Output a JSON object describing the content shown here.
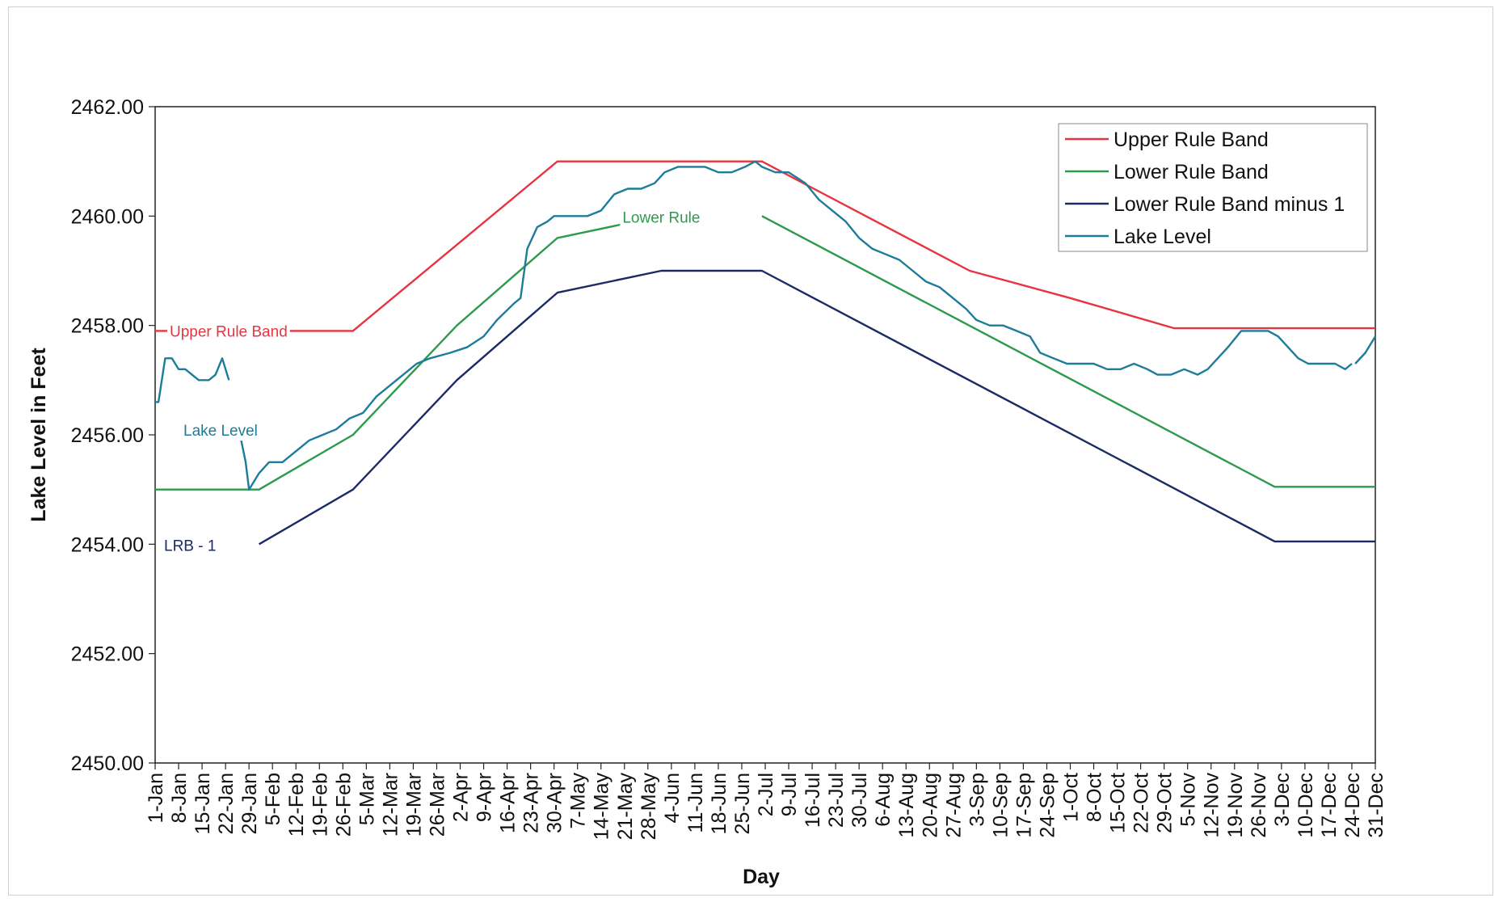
{
  "chart_data": {
    "type": "line",
    "title": "",
    "xlabel": "Day",
    "ylabel": "Lake Level in Feet",
    "ylim": [
      2450,
      2462
    ],
    "xlim": [
      "1-Jan",
      "31-Dec"
    ],
    "grid": false,
    "legend_position": "top-right",
    "y_ticks": [
      "2450.00",
      "2452.00",
      "2454.00",
      "2456.00",
      "2458.00",
      "2460.00",
      "2462.00"
    ],
    "x_ticks": [
      "1-Jan",
      "8-Jan",
      "15-Jan",
      "22-Jan",
      "29-Jan",
      "5-Feb",
      "12-Feb",
      "19-Feb",
      "26-Feb",
      "5-Mar",
      "12-Mar",
      "19-Mar",
      "26-Mar",
      "2-Apr",
      "9-Apr",
      "16-Apr",
      "23-Apr",
      "30-Apr",
      "7-May",
      "14-May",
      "21-May",
      "28-May",
      "4-Jun",
      "11-Jun",
      "18-Jun",
      "25-Jun",
      "2-Jul",
      "9-Jul",
      "16-Jul",
      "23-Jul",
      "30-Jul",
      "6-Aug",
      "13-Aug",
      "20-Aug",
      "27-Aug",
      "3-Sep",
      "10-Sep",
      "17-Sep",
      "24-Sep",
      "1-Oct",
      "8-Oct",
      "15-Oct",
      "22-Oct",
      "29-Oct",
      "5-Nov",
      "12-Nov",
      "19-Nov",
      "26-Nov",
      "3-Dec",
      "10-Dec",
      "17-Dec",
      "24-Dec",
      "31-Dec"
    ],
    "series": [
      {
        "name": "Upper Rule Band",
        "color": "#e8343f",
        "points": [
          [
            "1-Jan",
            2457.9
          ],
          [
            "1-Mar",
            2457.9
          ],
          [
            "1-May",
            2461.0
          ],
          [
            "1-Jul",
            2461.0
          ],
          [
            "1-Sep",
            2459.0
          ],
          [
            "1-Oct",
            2458.5
          ],
          [
            "1-Nov",
            2457.95
          ],
          [
            "31-Dec",
            2457.95
          ]
        ]
      },
      {
        "name": "Lower Rule Band",
        "color": "#2e9a4e",
        "points": [
          [
            "1-Jan",
            2455.0
          ],
          [
            "1-Feb",
            2455.0
          ],
          [
            "1-Mar",
            2456.0
          ],
          [
            "1-Apr",
            2458.0
          ],
          [
            "1-May",
            2459.6
          ],
          [
            "1-Jun",
            2460.0
          ]
        ],
        "points_2": [
          [
            "1-Jul",
            2460.0
          ],
          [
            "1-Dec",
            2455.05
          ],
          [
            "31-Dec",
            2455.05
          ]
        ]
      },
      {
        "name": "Lower Rule Band minus 1",
        "color": "#1b2a66",
        "points": [
          [
            "1-Feb",
            2454.0
          ],
          [
            "1-Mar",
            2455.0
          ],
          [
            "1-Apr",
            2457.0
          ],
          [
            "1-May",
            2458.6
          ],
          [
            "1-Jun",
            2459.0
          ],
          [
            "1-Jul",
            2459.0
          ],
          [
            "1-Dec",
            2454.05
          ],
          [
            "31-Dec",
            2454.05
          ]
        ]
      },
      {
        "name": "Lake Level",
        "color": "#1c7c99",
        "points": [
          [
            "1-Jan",
            2456.6
          ],
          [
            "2-Jan",
            2456.6
          ],
          [
            "4-Jan",
            2457.4
          ],
          [
            "6-Jan",
            2457.4
          ],
          [
            "8-Jan",
            2457.2
          ],
          [
            "10-Jan",
            2457.2
          ],
          [
            "12-Jan",
            2457.1
          ],
          [
            "14-Jan",
            2457.0
          ],
          [
            "17-Jan",
            2457.0
          ],
          [
            "19-Jan",
            2457.1
          ],
          [
            "21-Jan",
            2457.4
          ],
          [
            "23-Jan",
            2457.0
          ]
        ],
        "points_2": [
          [
            "26-Jan",
            2456.1
          ],
          [
            "28-Jan",
            2455.5
          ],
          [
            "29-Jan",
            2455.0
          ],
          [
            "1-Feb",
            2455.3
          ],
          [
            "4-Feb",
            2455.5
          ],
          [
            "8-Feb",
            2455.5
          ],
          [
            "12-Feb",
            2455.7
          ],
          [
            "16-Feb",
            2455.9
          ],
          [
            "20-Feb",
            2456.0
          ],
          [
            "24-Feb",
            2456.1
          ],
          [
            "28-Feb",
            2456.3
          ],
          [
            "4-Mar",
            2456.4
          ],
          [
            "8-Mar",
            2456.7
          ],
          [
            "12-Mar",
            2456.9
          ],
          [
            "16-Mar",
            2457.1
          ],
          [
            "20-Mar",
            2457.3
          ],
          [
            "24-Mar",
            2457.4
          ],
          [
            "30-Mar",
            2457.5
          ],
          [
            "4-Apr",
            2457.6
          ],
          [
            "9-Apr",
            2457.8
          ],
          [
            "13-Apr",
            2458.1
          ],
          [
            "18-Apr",
            2458.4
          ],
          [
            "20-Apr",
            2458.5
          ],
          [
            "22-Apr",
            2459.4
          ],
          [
            "25-Apr",
            2459.8
          ],
          [
            "28-Apr",
            2459.9
          ],
          [
            "30-Apr",
            2460.0
          ],
          [
            "6-May",
            2460.0
          ],
          [
            "10-May",
            2460.0
          ],
          [
            "14-May",
            2460.1
          ],
          [
            "18-May",
            2460.4
          ],
          [
            "22-May",
            2460.5
          ],
          [
            "26-May",
            2460.5
          ],
          [
            "30-May",
            2460.6
          ],
          [
            "2-Jun",
            2460.8
          ],
          [
            "6-Jun",
            2460.9
          ],
          [
            "10-Jun",
            2460.9
          ],
          [
            "14-Jun",
            2460.9
          ],
          [
            "18-Jun",
            2460.8
          ],
          [
            "22-Jun",
            2460.8
          ],
          [
            "26-Jun",
            2460.9
          ],
          [
            "29-Jun",
            2461.0
          ],
          [
            "1-Jul",
            2460.9
          ],
          [
            "5-Jul",
            2460.8
          ],
          [
            "9-Jul",
            2460.8
          ],
          [
            "14-Jul",
            2460.6
          ],
          [
            "18-Jul",
            2460.3
          ],
          [
            "22-Jul",
            2460.1
          ],
          [
            "26-Jul",
            2459.9
          ],
          [
            "30-Jul",
            2459.6
          ],
          [
            "3-Aug",
            2459.4
          ],
          [
            "7-Aug",
            2459.3
          ],
          [
            "11-Aug",
            2459.2
          ],
          [
            "15-Aug",
            2459.0
          ],
          [
            "19-Aug",
            2458.8
          ],
          [
            "23-Aug",
            2458.7
          ],
          [
            "27-Aug",
            2458.5
          ],
          [
            "31-Aug",
            2458.3
          ],
          [
            "3-Sep",
            2458.1
          ],
          [
            "7-Sep",
            2458.0
          ],
          [
            "11-Sep",
            2458.0
          ],
          [
            "15-Sep",
            2457.9
          ],
          [
            "19-Sep",
            2457.8
          ],
          [
            "22-Sep",
            2457.5
          ],
          [
            "26-Sep",
            2457.4
          ],
          [
            "30-Sep",
            2457.3
          ],
          [
            "4-Oct",
            2457.3
          ],
          [
            "8-Oct",
            2457.3
          ],
          [
            "12-Oct",
            2457.2
          ],
          [
            "16-Oct",
            2457.2
          ],
          [
            "20-Oct",
            2457.3
          ],
          [
            "24-Oct",
            2457.2
          ],
          [
            "27-Oct",
            2457.1
          ],
          [
            "31-Oct",
            2457.1
          ],
          [
            "4-Nov",
            2457.2
          ],
          [
            "8-Nov",
            2457.1
          ],
          [
            "11-Nov",
            2457.2
          ],
          [
            "14-Nov",
            2457.4
          ],
          [
            "17-Nov",
            2457.6
          ],
          [
            "21-Nov",
            2457.9
          ],
          [
            "25-Nov",
            2457.9
          ],
          [
            "29-Nov",
            2457.9
          ],
          [
            "2-Dec",
            2457.8
          ],
          [
            "5-Dec",
            2457.6
          ],
          [
            "8-Dec",
            2457.4
          ],
          [
            "11-Dec",
            2457.3
          ],
          [
            "15-Dec",
            2457.3
          ],
          [
            "19-Dec",
            2457.3
          ],
          [
            "22-Dec",
            2457.2
          ],
          [
            "24-Dec",
            2457.3
          ]
        ],
        "points_3": [
          [
            "25-Dec",
            2457.3
          ],
          [
            "28-Dec",
            2457.5
          ],
          [
            "31-Dec",
            2457.8
          ]
        ]
      }
    ],
    "annotations": [
      {
        "text": "Upper Rule Band",
        "color": "#e8343f",
        "at": [
          "1-Jan",
          2457.9
        ]
      },
      {
        "text": "Lake Level",
        "color": "#1c7c99",
        "at": [
          "1-Jan",
          2456.5
        ]
      },
      {
        "text": "LRB - 1",
        "color": "#1b2a66",
        "at": [
          "1-Jan",
          2454.0
        ]
      },
      {
        "text": "Lower Rule",
        "color": "#2e9a4e",
        "at": [
          "1-Jun",
          2460.0
        ]
      }
    ],
    "legend": [
      "Upper Rule Band",
      "Lower Rule Band",
      "Lower Rule Band minus 1",
      "Lake Level"
    ]
  }
}
